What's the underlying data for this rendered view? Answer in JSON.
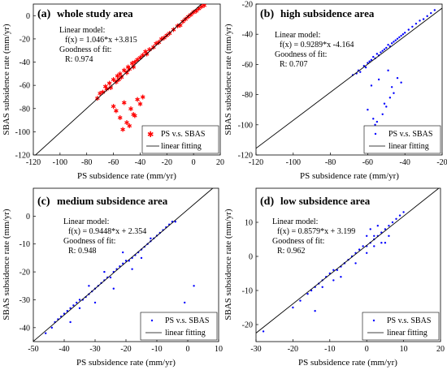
{
  "chart_data": [
    {
      "type": "scatter",
      "panel_label": "(a)",
      "title": "whole study area",
      "xlabel": "PS subsidence rate (mm/yr)",
      "ylabel": "SBAS subsidence rate (mm/yr)",
      "xlim": [
        -120,
        20
      ],
      "ylim": [
        -120,
        10
      ],
      "xticks": [
        -120,
        -100,
        -80,
        -60,
        -40,
        -20,
        0,
        20
      ],
      "yticks": [
        -120,
        -100,
        -80,
        -60,
        -40,
        -20,
        0
      ],
      "grid": false,
      "legend_position": "bottom-right",
      "marker": "star",
      "color": "#ff0000",
      "series": [
        {
          "name": "PS v.s. SBAS",
          "kind": "scatter",
          "x": [
            -72,
            -70,
            -68,
            -66,
            -65,
            -63,
            -62,
            -60,
            -58,
            -57,
            -56,
            -55,
            -54,
            -52,
            -50,
            -49,
            -48,
            -46,
            -45,
            -44,
            -42,
            -40,
            -38,
            -36,
            -35,
            -33,
            -30,
            -28,
            -26,
            -24,
            -22,
            -20,
            -18,
            -15,
            -12,
            -10,
            -8,
            -6,
            -4,
            -2,
            0,
            2,
            4,
            6,
            8,
            -60,
            -58,
            -55,
            -52,
            -50,
            -47,
            -45,
            -42,
            -40,
            -38,
            -48,
            -53,
            -44
          ],
          "y": [
            -71,
            -67,
            -66,
            -61,
            -63,
            -58,
            -62,
            -55,
            -57,
            -52,
            -55,
            -50,
            -53,
            -47,
            -49,
            -44,
            -46,
            -41,
            -44,
            -40,
            -38,
            -36,
            -34,
            -31,
            -33,
            -29,
            -27,
            -24,
            -23,
            -20,
            -19,
            -17,
            -15,
            -12,
            -9,
            -8,
            -5,
            -3,
            -1,
            1,
            3,
            4,
            6,
            8,
            9,
            -78,
            -82,
            -88,
            -75,
            -92,
            -80,
            -85,
            -72,
            -76,
            -70,
            -95,
            -98,
            -86
          ]
        },
        {
          "name": "linear fitting",
          "kind": "line",
          "x": [
            -120,
            20
          ],
          "y": [
            -121.7,
            24.7
          ]
        }
      ],
      "annotations": [
        "Linear model:",
        "f(x) = 1.046*x +3.815",
        "Goodness of fit:",
        "R: 0.974"
      ]
    },
    {
      "type": "scatter",
      "panel_label": "(b)",
      "title": "high subsidence area",
      "xlabel": "PS subsidence rate (mm/yr)",
      "ylabel": "SBAS subsidence rate (mm/yr)",
      "xlim": [
        -120,
        -20
      ],
      "ylim": [
        -120,
        -20
      ],
      "xticks": [
        -120,
        -100,
        -80,
        -60,
        -40,
        -20
      ],
      "yticks": [
        -120,
        -100,
        -80,
        -60,
        -40,
        -20
      ],
      "grid": false,
      "legend_position": "bottom-right",
      "marker": "dot",
      "color": "#0000ff",
      "series": [
        {
          "name": "PS v.s. SBAS",
          "kind": "scatter",
          "x": [
            -68,
            -66,
            -65,
            -64,
            -62,
            -61,
            -60,
            -59,
            -58,
            -57,
            -56,
            -55,
            -54,
            -53,
            -52,
            -51,
            -50,
            -49,
            -48,
            -47,
            -46,
            -45,
            -44,
            -43,
            -42,
            -41,
            -40,
            -38,
            -36,
            -34,
            -32,
            -30,
            -28,
            -26,
            -24,
            -60,
            -57,
            -55,
            -52,
            -50,
            -48,
            -46,
            -58,
            -54,
            -47,
            -44,
            -42,
            -56,
            -51,
            -49
          ],
          "y": [
            -67,
            -66,
            -64,
            -65,
            -61,
            -62,
            -59,
            -58,
            -57,
            -55,
            -56,
            -53,
            -54,
            -52,
            -51,
            -50,
            -49,
            -47,
            -48,
            -46,
            -45,
            -44,
            -43,
            -42,
            -41,
            -40,
            -39,
            -37,
            -35,
            -33,
            -31,
            -30,
            -28,
            -26,
            -24,
            -90,
            -96,
            -98,
            -93,
            -88,
            -82,
            -79,
            -74,
            -70,
            -75,
            -69,
            -72,
            -100,
            -86,
            -64
          ]
        },
        {
          "name": "linear fitting",
          "kind": "line",
          "x": [
            -120,
            -20
          ],
          "y": [
            -115.6,
            -22.7
          ]
        }
      ],
      "annotations": [
        "Linear model:",
        "f(x) = 0.9289*x -4.164",
        "Goodness of fit:",
        "R: 0.707"
      ]
    },
    {
      "type": "scatter",
      "panel_label": "(c)",
      "title": "medium subsidence area",
      "xlabel": "PS subsidence rate (mm/yr)",
      "ylabel": "SBAS subsidence rate (mm/yr)",
      "xlim": [
        -50,
        10
      ],
      "ylim": [
        -45,
        10
      ],
      "xticks": [
        -50,
        -40,
        -30,
        -20,
        -10,
        0,
        10
      ],
      "yticks": [
        -40,
        -30,
        -20,
        -10,
        0
      ],
      "grid": false,
      "legend_position": "bottom-right",
      "marker": "dot",
      "color": "#0000ff",
      "series": [
        {
          "name": "PS v.s. SBAS",
          "kind": "scatter",
          "x": [
            -46,
            -44,
            -43,
            -42,
            -41,
            -40,
            -39,
            -38,
            -37,
            -36,
            -35,
            -34,
            -33,
            -32,
            -31,
            -30,
            -29,
            -28,
            -27,
            -26,
            -25,
            -24,
            -23,
            -22,
            -21,
            -20,
            -19,
            -18,
            -17,
            -16,
            -15,
            -14,
            -13,
            -12,
            -11,
            -10,
            -9,
            -8,
            -7,
            -6,
            -5,
            -4,
            -38,
            -35,
            -32,
            -30,
            -27,
            -24,
            -21,
            -18,
            -15,
            -12,
            2,
            -1
          ],
          "y": [
            -42,
            -40,
            -38,
            -37,
            -36,
            -35,
            -34,
            -33,
            -32,
            -31,
            -30,
            -30,
            -29,
            -28,
            -27,
            -26,
            -25,
            -24,
            -23,
            -22,
            -22,
            -20,
            -19,
            -18,
            -17,
            -16,
            -16,
            -15,
            -14,
            -13,
            -12,
            -11,
            -10,
            -9,
            -8,
            -7,
            -6,
            -5,
            -4,
            -3,
            -2,
            -2,
            -38,
            -33,
            -25,
            -31,
            -20,
            -26,
            -13,
            -19,
            -15,
            -8,
            -25,
            -31
          ]
        },
        {
          "name": "linear fitting",
          "kind": "line",
          "x": [
            -50,
            10
          ],
          "y": [
            -44.9,
            11.8
          ]
        }
      ],
      "annotations": [
        "Linear model:",
        "f(x) = 0.9448*x + 2.354",
        "Goodness of fit:",
        "R: 0.948"
      ]
    },
    {
      "type": "scatter",
      "panel_label": "(d)",
      "title": "low subsidence area",
      "xlabel": "PS subsidence rate (mm/yr)",
      "ylabel": "SBAS subsidence rate (mm/yr)",
      "xlim": [
        -30,
        20
      ],
      "ylim": [
        -25,
        20
      ],
      "xticks": [
        -30,
        -20,
        -10,
        0,
        10,
        20
      ],
      "yticks": [
        -20,
        -10,
        0,
        10
      ],
      "grid": false,
      "legend_position": "bottom-right",
      "marker": "dot",
      "color": "#0000ff",
      "series": [
        {
          "name": "PS v.s. SBAS",
          "kind": "scatter",
          "x": [
            -28,
            -20,
            -18,
            -16,
            -15,
            -14,
            -13,
            -12,
            -11,
            -10,
            -9,
            -8,
            -7,
            -6,
            -5,
            -4,
            -3,
            -2,
            -1,
            0,
            1,
            2,
            3,
            4,
            5,
            6,
            7,
            8,
            9,
            10,
            -12,
            -9,
            -6,
            -3,
            0,
            2,
            4,
            6,
            1,
            3,
            -14,
            -7,
            5,
            0,
            2
          ],
          "y": [
            -22,
            -15,
            -13,
            -11,
            -10,
            -9,
            -8,
            -7,
            -6,
            -5,
            -4,
            -4,
            -3,
            -2,
            -1,
            0,
            1,
            2,
            3,
            3,
            4,
            5,
            6,
            7,
            8,
            9,
            10,
            11,
            12,
            13,
            -9,
            -7,
            -2,
            -2,
            1,
            6,
            4,
            6,
            8,
            9,
            -16,
            -6,
            4,
            6,
            3
          ]
        },
        {
          "name": "linear fitting",
          "kind": "line",
          "x": [
            -30,
            20
          ],
          "y": [
            -22.5,
            20.4
          ]
        }
      ],
      "annotations": [
        "Linear model:",
        "f(x) = 0.8579*x + 3.199",
        "Goodness of fit:",
        "R: 0.962"
      ]
    }
  ]
}
